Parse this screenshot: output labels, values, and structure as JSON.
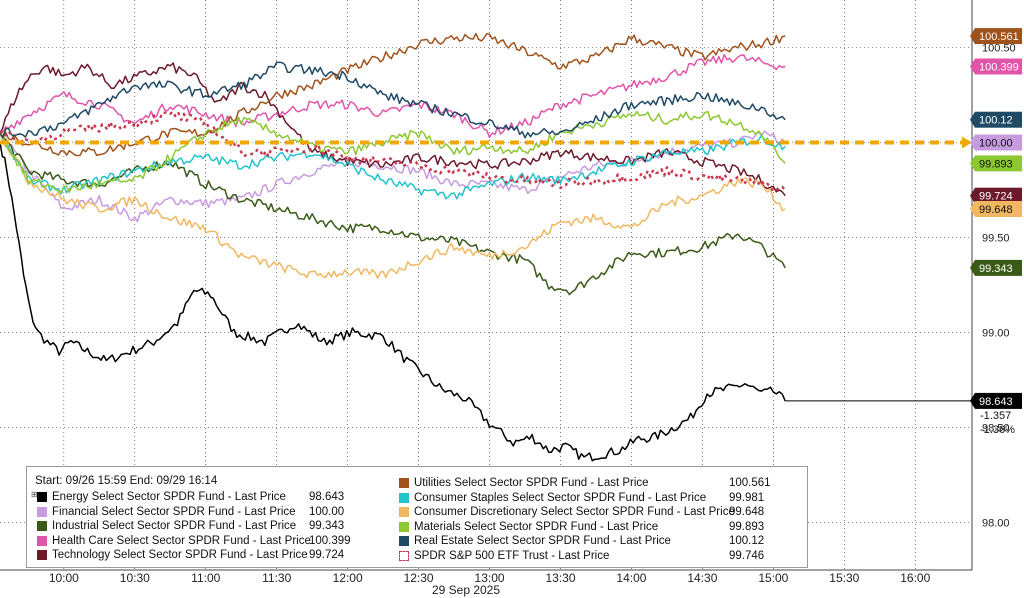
{
  "chart_data": {
    "type": "line",
    "title": "",
    "start_end_label": "Start: 09/26 15:59 End: 09/29 16:14",
    "xlabel": "29 Sep 2025",
    "ylabel": "",
    "x_ticks": [
      "10:00",
      "10:30",
      "11:00",
      "11:30",
      "12:00",
      "12:30",
      "13:00",
      "13:30",
      "14:00",
      "14:30",
      "15:00",
      "15:30",
      "16:00"
    ],
    "x_tick_minutes": [
      600,
      630,
      660,
      690,
      720,
      750,
      780,
      810,
      840,
      870,
      900,
      930,
      960
    ],
    "xlim_minutes": [
      573,
      984
    ],
    "y_ticks": [
      "98.00",
      "98.50",
      "99.00",
      "99.50",
      "100.00",
      "100.50"
    ],
    "y_tick_values": [
      98.0,
      98.5,
      99.0,
      99.5,
      100.0,
      100.5
    ],
    "ylim": [
      97.75,
      100.75
    ],
    "reference_level": 100.0,
    "grid": true,
    "legend_position": "bottom-left",
    "series": [
      {
        "name": "Energy Select Sector SPDR Fund - Last Price",
        "value": "98.643",
        "color": "#000000",
        "style": "solid",
        "tag": "98.643",
        "tag_lines": [
          "-1.357",
          "-1.36%"
        ],
        "x": [
          573,
          576,
          578,
          580,
          583,
          586,
          589,
          593,
          598,
          603,
          610,
          618,
          628,
          638,
          648,
          655,
          662,
          672,
          685,
          698,
          710,
          722,
          735,
          745,
          752,
          760,
          770,
          780,
          790,
          798,
          805,
          812,
          820,
          828,
          835,
          843,
          850,
          858,
          865,
          872,
          880,
          888,
          895,
          900,
          905
        ],
        "y": [
          100.0,
          99.85,
          99.7,
          99.55,
          99.3,
          99.1,
          99.0,
          98.95,
          98.9,
          98.95,
          98.9,
          98.85,
          98.9,
          98.95,
          99.05,
          99.22,
          99.2,
          99.0,
          98.95,
          99.05,
          98.95,
          99.0,
          98.98,
          98.85,
          98.78,
          98.7,
          98.65,
          98.52,
          98.42,
          98.45,
          98.38,
          98.4,
          98.34,
          98.36,
          98.38,
          98.44,
          98.45,
          98.5,
          98.55,
          98.68,
          98.7,
          98.73,
          98.68,
          98.69,
          98.64
        ]
      },
      {
        "name": "Financial Select Sector SPDR Fund - Last Price",
        "value": "100.00",
        "color": "#c79be0",
        "style": "solid",
        "tag": "100.00",
        "x": [
          573,
          585,
          600,
          615,
          630,
          645,
          660,
          675,
          690,
          705,
          720,
          735,
          750,
          765,
          780,
          795,
          810,
          825,
          840,
          855,
          870,
          885,
          895,
          905
        ],
        "y": [
          100.05,
          99.85,
          99.65,
          99.7,
          99.6,
          99.7,
          99.68,
          99.7,
          99.78,
          99.85,
          99.9,
          99.88,
          99.85,
          99.78,
          99.78,
          99.75,
          99.82,
          99.88,
          99.9,
          99.95,
          99.98,
          100.0,
          100.05,
          100.0
        ]
      },
      {
        "name": "Industrial Select Sector SPDR Fund - Last Price",
        "value": "99.343",
        "color": "#3a5a18",
        "style": "solid",
        "tag": "99.343",
        "x": [
          573,
          585,
          600,
          615,
          630,
          645,
          660,
          675,
          690,
          705,
          720,
          735,
          750,
          765,
          780,
          795,
          805,
          815,
          825,
          840,
          855,
          870,
          885,
          895,
          905
        ],
        "y": [
          100.05,
          99.85,
          99.8,
          99.78,
          99.85,
          99.9,
          99.78,
          99.7,
          99.65,
          99.6,
          99.55,
          99.55,
          99.5,
          99.48,
          99.42,
          99.38,
          99.25,
          99.22,
          99.3,
          99.42,
          99.42,
          99.45,
          99.52,
          99.45,
          99.34
        ]
      },
      {
        "name": "Health Care Select Sector SPDR Fund - Last Price",
        "value": "100.399",
        "color": "#e055aa",
        "style": "solid",
        "tag": "100.399",
        "x": [
          573,
          585,
          600,
          615,
          630,
          645,
          660,
          675,
          690,
          705,
          720,
          735,
          750,
          765,
          780,
          795,
          810,
          825,
          840,
          855,
          870,
          885,
          895,
          905
        ],
        "y": [
          100.05,
          100.15,
          100.25,
          100.2,
          100.1,
          100.2,
          100.15,
          100.1,
          100.15,
          100.2,
          100.2,
          100.15,
          100.2,
          100.15,
          100.05,
          100.1,
          100.2,
          100.25,
          100.3,
          100.35,
          100.42,
          100.45,
          100.42,
          100.4
        ]
      },
      {
        "name": "Technology Select Sector SPDR Fund - Last Price",
        "value": "99.724",
        "color": "#6b1a2a",
        "style": "solid",
        "tag": "99.724",
        "x": [
          573,
          580,
          586,
          592,
          600,
          610,
          620,
          632,
          645,
          655,
          665,
          675,
          685,
          695,
          705,
          720,
          735,
          750,
          765,
          780,
          795,
          810,
          825,
          840,
          855,
          870,
          885,
          895,
          905
        ],
        "y": [
          100.05,
          100.25,
          100.35,
          100.4,
          100.35,
          100.4,
          100.3,
          100.35,
          100.4,
          100.35,
          100.2,
          100.3,
          100.25,
          100.1,
          99.95,
          99.9,
          99.88,
          99.92,
          99.9,
          99.88,
          99.9,
          99.95,
          99.92,
          99.9,
          99.95,
          99.9,
          99.85,
          99.8,
          99.72
        ]
      },
      {
        "name": "Utilities Select Sector SPDR Fund - Last Price",
        "value": "100.561",
        "color": "#a0521c",
        "style": "solid",
        "tag": "100.561",
        "x": [
          573,
          585,
          600,
          615,
          630,
          645,
          660,
          675,
          690,
          705,
          720,
          735,
          750,
          765,
          780,
          795,
          810,
          825,
          840,
          855,
          870,
          885,
          895,
          905
        ],
        "y": [
          100.05,
          100.0,
          99.95,
          99.95,
          100.0,
          100.05,
          100.05,
          100.15,
          100.25,
          100.3,
          100.38,
          100.45,
          100.52,
          100.55,
          100.55,
          100.48,
          100.4,
          100.45,
          100.55,
          100.5,
          100.45,
          100.5,
          100.52,
          100.56
        ]
      },
      {
        "name": "Consumer Staples Select Sector SPDR Fund - Last Price",
        "value": "99.981",
        "color": "#22c4cc",
        "style": "solid",
        "x": [
          573,
          585,
          600,
          615,
          630,
          645,
          660,
          675,
          690,
          705,
          720,
          735,
          750,
          765,
          780,
          795,
          810,
          825,
          840,
          855,
          870,
          885,
          895,
          905
        ],
        "y": [
          100.05,
          99.8,
          99.75,
          99.8,
          99.85,
          99.9,
          99.92,
          99.88,
          99.92,
          99.95,
          99.88,
          99.8,
          99.75,
          99.72,
          99.78,
          99.82,
          99.8,
          99.85,
          99.9,
          99.95,
          99.95,
          100.0,
          100.02,
          99.98
        ]
      },
      {
        "name": "Consumer Discretionary Select Sector SPDR Fund - Last Price",
        "value": "99.648",
        "color": "#f0b860",
        "style": "solid",
        "tag": "99.648",
        "x": [
          573,
          585,
          600,
          615,
          630,
          645,
          660,
          675,
          690,
          705,
          720,
          735,
          750,
          765,
          780,
          795,
          810,
          825,
          840,
          855,
          870,
          885,
          895,
          905
        ],
        "y": [
          100.05,
          99.8,
          99.7,
          99.65,
          99.7,
          99.6,
          99.55,
          99.4,
          99.35,
          99.3,
          99.32,
          99.3,
          99.38,
          99.45,
          99.4,
          99.45,
          99.58,
          99.6,
          99.55,
          99.68,
          99.72,
          99.8,
          99.78,
          99.65
        ]
      },
      {
        "name": "Materials Select Sector SPDR Fund - Last Price",
        "value": "99.893",
        "color": "#8cc832",
        "style": "solid",
        "tag": "99.893",
        "x": [
          573,
          585,
          600,
          615,
          630,
          645,
          660,
          675,
          690,
          705,
          720,
          735,
          750,
          765,
          780,
          795,
          810,
          825,
          840,
          855,
          870,
          885,
          895,
          905
        ],
        "y": [
          100.05,
          99.8,
          99.75,
          99.78,
          99.8,
          99.92,
          100.05,
          100.12,
          100.05,
          99.98,
          99.95,
          100.0,
          100.05,
          99.95,
          99.98,
          99.95,
          100.05,
          100.1,
          100.15,
          100.12,
          100.15,
          100.1,
          100.05,
          99.89
        ]
      },
      {
        "name": "Real Estate Select Sector SPDR Fund - Last Price",
        "value": "100.12",
        "color": "#1e4a66",
        "style": "solid",
        "tag": "100.12",
        "x": [
          573,
          585,
          600,
          615,
          630,
          645,
          660,
          675,
          690,
          705,
          720,
          735,
          750,
          765,
          780,
          795,
          810,
          825,
          840,
          855,
          870,
          885,
          895,
          905
        ],
        "y": [
          100.05,
          100.05,
          100.1,
          100.2,
          100.3,
          100.3,
          100.25,
          100.3,
          100.4,
          100.38,
          100.35,
          100.25,
          100.2,
          100.15,
          100.1,
          100.05,
          100.05,
          100.12,
          100.2,
          100.22,
          100.25,
          100.2,
          100.18,
          100.12
        ]
      },
      {
        "name": "SPDR S&P 500 ETF Trust - Last Price",
        "value": "99.746",
        "color": "#c8384f",
        "style": "dashed",
        "x": [
          573,
          585,
          600,
          615,
          630,
          645,
          660,
          675,
          690,
          705,
          720,
          735,
          750,
          765,
          780,
          795,
          810,
          825,
          840,
          855,
          870,
          885,
          895,
          905
        ],
        "y": [
          100.05,
          100.0,
          100.05,
          100.08,
          100.1,
          100.15,
          100.1,
          99.95,
          99.95,
          99.98,
          99.92,
          99.9,
          99.88,
          99.85,
          99.82,
          99.8,
          99.78,
          99.8,
          99.82,
          99.85,
          99.82,
          99.8,
          99.78,
          99.75
        ]
      }
    ]
  }
}
